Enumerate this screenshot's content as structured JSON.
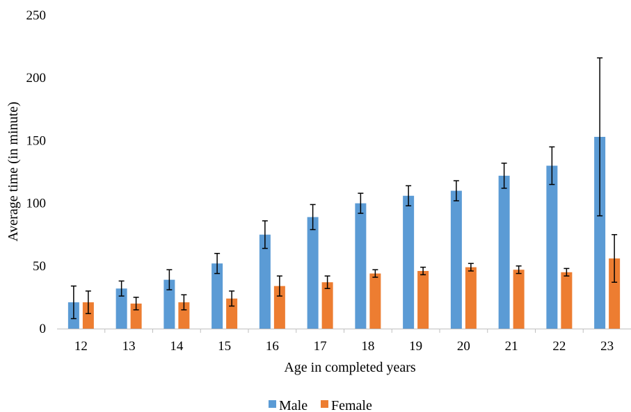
{
  "chart_data": {
    "type": "bar",
    "xlabel": "Age in completed years",
    "ylabel": "Average time (in minute)",
    "categories": [
      "12",
      "13",
      "14",
      "15",
      "16",
      "17",
      "18",
      "19",
      "20",
      "21",
      "22",
      "23"
    ],
    "ylim": [
      0,
      250
    ],
    "yticks": [
      0,
      50,
      100,
      150,
      200,
      250
    ],
    "grid": false,
    "legend_position": "bottom",
    "series": [
      {
        "name": "Male",
        "color": "#5b9bd5",
        "values": [
          21,
          32,
          39,
          52,
          75,
          89,
          100,
          106,
          110,
          122,
          130,
          153
        ],
        "error_low": [
          13,
          6,
          8,
          8,
          11,
          10,
          8,
          8,
          8,
          10,
          15,
          63
        ],
        "error_high": [
          13,
          6,
          8,
          8,
          11,
          10,
          8,
          8,
          8,
          10,
          15,
          63
        ]
      },
      {
        "name": "Female",
        "color": "#ed7d31",
        "values": [
          21,
          20,
          21,
          24,
          34,
          37,
          44,
          46,
          49,
          47,
          45,
          56
        ],
        "error_low": [
          9,
          5,
          6,
          6,
          8,
          5,
          3,
          3,
          3,
          3,
          3,
          19
        ],
        "error_high": [
          9,
          5,
          6,
          6,
          8,
          5,
          3,
          3,
          3,
          3,
          3,
          19
        ]
      }
    ]
  }
}
